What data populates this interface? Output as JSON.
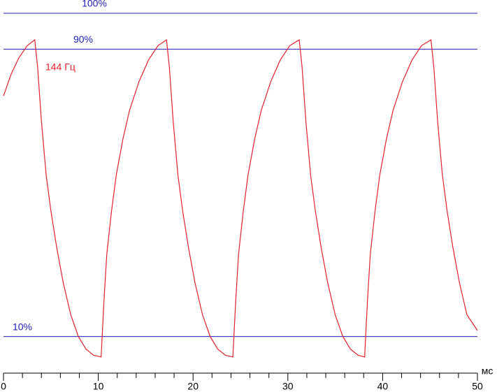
{
  "chart_data": {
    "type": "line",
    "x": [
      0,
      0.8,
      1.6,
      2.5,
      3.3,
      3.6,
      4.0,
      4.5,
      5.0,
      5.6,
      6.3,
      7.1,
      7.9,
      8.7,
      9.5,
      10.3,
      10.6,
      10.9,
      11.4,
      11.9,
      12.6,
      13.3,
      14.3,
      15.3,
      16.3,
      17.2,
      17.5,
      17.9,
      18.4,
      18.9,
      19.5,
      20.2,
      21.0,
      21.8,
      22.6,
      23.4,
      24.2,
      24.5,
      24.8,
      25.3,
      25.8,
      26.5,
      27.2,
      28.2,
      29.2,
      30.2,
      31.2,
      31.5,
      31.9,
      32.4,
      32.9,
      33.5,
      34.2,
      35.0,
      35.8,
      36.6,
      37.4,
      38.1,
      38.4,
      38.7,
      39.2,
      39.7,
      40.4,
      41.1,
      42.1,
      43.1,
      44.1,
      45.1,
      45.4,
      45.8,
      46.3,
      46.8,
      47.4,
      48.1,
      48.9,
      50.0
    ],
    "series": [
      {
        "name": "144 Гц",
        "color": "#e4202e",
        "values": [
          77,
          83,
          87.5,
          91,
          92.6,
          85,
          70,
          55,
          45,
          35,
          25,
          16,
          10,
          6.5,
          4.8,
          4.3,
          20,
          33,
          45,
          55,
          65,
          73,
          81,
          87,
          91,
          92.6,
          85,
          70,
          55,
          45,
          35,
          25,
          16,
          10,
          6.5,
          4.8,
          4.3,
          20,
          33,
          45,
          55,
          65,
          73,
          81,
          87,
          91,
          92.6,
          85,
          70,
          55,
          45,
          35,
          25,
          16,
          10,
          6.5,
          4.8,
          4.3,
          20,
          33,
          45,
          55,
          65,
          73,
          81,
          87,
          91,
          92.6,
          85,
          70,
          55,
          45,
          35,
          25,
          16,
          11.7
        ]
      }
    ],
    "xlim": [
      0,
      50
    ],
    "xticks": [
      0,
      10,
      20,
      30,
      40,
      50
    ],
    "xminorticks": [
      2,
      4,
      6,
      8,
      12,
      14,
      16,
      18,
      22,
      24,
      26,
      28,
      32,
      34,
      36,
      38,
      42,
      44,
      46,
      48
    ],
    "xlabel": "мс",
    "ylim": [
      0,
      103.7
    ],
    "yticks": [
      {
        "value": 10,
        "label": "10%"
      },
      {
        "value": 90,
        "label": "90%"
      },
      {
        "value": 100,
        "label": "100%"
      }
    ],
    "reference_color": "#1c1cb0"
  }
}
